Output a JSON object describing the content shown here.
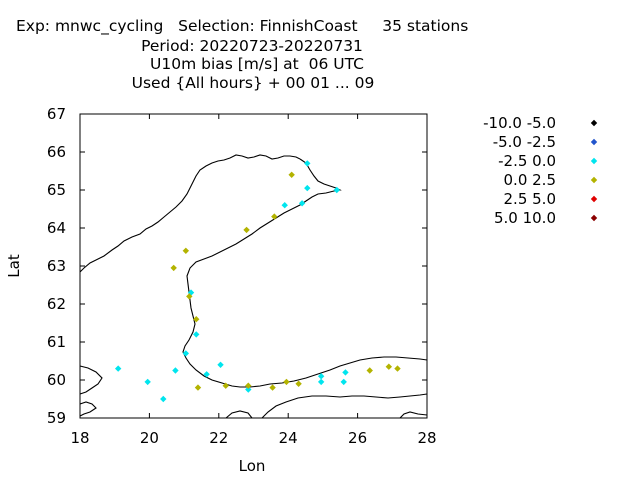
{
  "title": {
    "line1": "Exp: mnwc_cycling   Selection: FinnishCoast     35 stations",
    "line2": "Period: 20220723-20220731",
    "line3": "U10m bias [m/s] at  06 UTC",
    "line4": "Used {All hours} + 00 01 ... 09"
  },
  "chart_data": {
    "type": "scatter",
    "xlabel": "Lon",
    "ylabel": "Lat",
    "xlim": [
      18,
      28
    ],
    "ylim": [
      59,
      67
    ],
    "xticks": [
      "18",
      "20",
      "22",
      "24",
      "26",
      "28"
    ],
    "yticks": [
      "59",
      "60",
      "61",
      "62",
      "63",
      "64",
      "65",
      "66",
      "67"
    ],
    "legend_position": "right",
    "series": [
      {
        "name": "-10.0 -5.0",
        "color": "#000000",
        "points": []
      },
      {
        "name": "-5.0 -2.5",
        "color": "#2255cc",
        "points": []
      },
      {
        "name": "-2.5 0.0",
        "color": "#00e5ee",
        "points": [
          [
            19.1,
            60.3
          ],
          [
            19.95,
            59.95
          ],
          [
            20.4,
            59.5
          ],
          [
            20.75,
            60.25
          ],
          [
            21.05,
            60.7
          ],
          [
            21.2,
            62.3
          ],
          [
            21.35,
            61.2
          ],
          [
            21.65,
            60.15
          ],
          [
            22.05,
            60.4
          ],
          [
            22.85,
            59.75
          ],
          [
            23.9,
            64.6
          ],
          [
            24.4,
            64.65
          ],
          [
            24.55,
            65.7
          ],
          [
            24.55,
            65.05
          ],
          [
            24.95,
            59.95
          ],
          [
            24.95,
            60.1
          ],
          [
            25.4,
            65.0
          ],
          [
            25.6,
            59.95
          ],
          [
            25.65,
            60.2
          ]
        ]
      },
      {
        "name": "0.0 2.5",
        "color": "#b3b300",
        "points": [
          [
            20.7,
            62.95
          ],
          [
            21.05,
            63.4
          ],
          [
            21.15,
            62.2
          ],
          [
            21.35,
            61.6
          ],
          [
            21.4,
            59.8
          ],
          [
            22.2,
            59.85
          ],
          [
            22.8,
            63.95
          ],
          [
            22.85,
            59.85
          ],
          [
            23.55,
            59.8
          ],
          [
            23.6,
            64.3
          ],
          [
            23.95,
            59.95
          ],
          [
            24.1,
            65.4
          ],
          [
            24.3,
            59.9
          ],
          [
            26.35,
            60.25
          ],
          [
            26.9,
            60.35
          ],
          [
            27.15,
            60.3
          ]
        ]
      },
      {
        "name": "2.5 5.0",
        "color": "#e00000",
        "points": []
      },
      {
        "name": "5.0 10.0",
        "color": "#8b0000",
        "points": []
      }
    ]
  }
}
